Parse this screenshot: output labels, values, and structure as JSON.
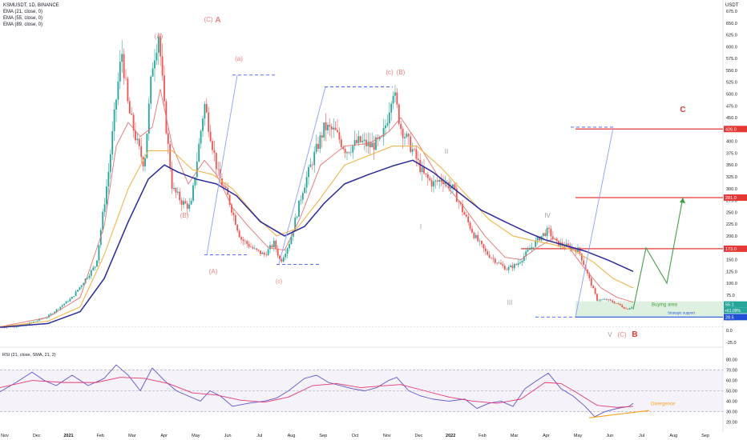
{
  "header": {
    "symbol": "KSMUSDT, 1D, BINANCE",
    "indicators": [
      "EMA (21, close, 0)",
      "EMA (55, close, 0)",
      "EMA (89, close, 0)"
    ],
    "currency": "USDT"
  },
  "colors": {
    "up": "#26a69a",
    "down": "#ef5350",
    "ema21": "#e57373",
    "ema55": "#f0b44c",
    "ema89": "#2a2a9a",
    "wave_label": "#ef7f7f",
    "wave_roman": "#9e9e9e",
    "resistance": "#e53935",
    "projection": "#43a047",
    "fib": "#8c9eff",
    "buying_area": "#c8e6c9",
    "support": "#1e4fd6",
    "rsi": "#5c55c9",
    "rsi_ma": "#e53970",
    "divergence": "#f5a623"
  },
  "chart_data": [
    {
      "type": "candlestick",
      "title": "KSMUSDT, 1D, BINANCE",
      "y_ticks": [
        "675.0",
        "650.0",
        "625.0",
        "600.0",
        "575.0",
        "550.0",
        "525.0",
        "500.0",
        "475.0",
        "450.0",
        "425.0",
        "400.0",
        "375.0",
        "350.0",
        "325.0",
        "300.0",
        "275.0",
        "250.0",
        "225.0",
        "200.0",
        "175.0",
        "150.0",
        "125.0",
        "100.0",
        "75.0",
        "50.0",
        "25.0",
        "0.0",
        "-25.0"
      ],
      "x_ticks": [
        "Nov",
        "Dec",
        "2021",
        "Feb",
        "Mar",
        "Apr",
        "May",
        "Jun",
        "Jul",
        "Aug",
        "Sep",
        "Oct",
        "Nov",
        "Dec",
        "2022",
        "Feb",
        "Mar",
        "Apr",
        "May",
        "Jun",
        "Jul",
        "Aug",
        "Sep"
      ],
      "ylim": [
        -25,
        675
      ],
      "price_path": [
        [
          0,
          7
        ],
        [
          30,
          11
        ],
        [
          60,
          30
        ],
        [
          90,
          70
        ],
        [
          120,
          140
        ],
        [
          135,
          330
        ],
        [
          145,
          490
        ],
        [
          152,
          590
        ],
        [
          160,
          470
        ],
        [
          172,
          390
        ],
        [
          180,
          350
        ],
        [
          190,
          560
        ],
        [
          198,
          630
        ],
        [
          205,
          470
        ],
        [
          215,
          300
        ],
        [
          228,
          270
        ],
        [
          238,
          260
        ],
        [
          255,
          480
        ],
        [
          262,
          420
        ],
        [
          272,
          330
        ],
        [
          285,
          280
        ],
        [
          300,
          195
        ],
        [
          318,
          170
        ],
        [
          330,
          160
        ],
        [
          342,
          185
        ],
        [
          350,
          145
        ],
        [
          362,
          190
        ],
        [
          378,
          300
        ],
        [
          392,
          370
        ],
        [
          405,
          430
        ],
        [
          418,
          420
        ],
        [
          432,
          380
        ],
        [
          448,
          400
        ],
        [
          462,
          390
        ],
        [
          476,
          400
        ],
        [
          484,
          455
        ],
        [
          490,
          515
        ],
        [
          500,
          430
        ],
        [
          515,
          380
        ],
        [
          528,
          330
        ],
        [
          540,
          310
        ],
        [
          552,
          320
        ],
        [
          565,
          300
        ],
        [
          578,
          250
        ],
        [
          592,
          200
        ],
        [
          606,
          165
        ],
        [
          620,
          145
        ],
        [
          632,
          130
        ],
        [
          645,
          140
        ],
        [
          660,
          170
        ],
        [
          672,
          195
        ],
        [
          684,
          212
        ],
        [
          694,
          185
        ],
        [
          708,
          178
        ],
        [
          722,
          170
        ],
        [
          735,
          110
        ],
        [
          745,
          65
        ],
        [
          758,
          65
        ],
        [
          772,
          55
        ],
        [
          782,
          45
        ],
        [
          790,
          52
        ]
      ],
      "ema21": [
        [
          0,
          8
        ],
        [
          60,
          28
        ],
        [
          100,
          70
        ],
        [
          130,
          220
        ],
        [
          145,
          390
        ],
        [
          160,
          440
        ],
        [
          175,
          410
        ],
        [
          190,
          430
        ],
        [
          200,
          510
        ],
        [
          215,
          390
        ],
        [
          235,
          310
        ],
        [
          255,
          360
        ],
        [
          270,
          330
        ],
        [
          290,
          260
        ],
        [
          310,
          220
        ],
        [
          335,
          175
        ],
        [
          355,
          170
        ],
        [
          375,
          240
        ],
        [
          400,
          350
        ],
        [
          430,
          390
        ],
        [
          460,
          395
        ],
        [
          485,
          420
        ],
        [
          500,
          450
        ],
        [
          520,
          400
        ],
        [
          545,
          330
        ],
        [
          575,
          270
        ],
        [
          605,
          200
        ],
        [
          630,
          155
        ],
        [
          650,
          150
        ],
        [
          670,
          175
        ],
        [
          690,
          195
        ],
        [
          710,
          175
        ],
        [
          730,
          130
        ],
        [
          750,
          90
        ],
        [
          770,
          70
        ],
        [
          790,
          60
        ]
      ],
      "ema55": [
        [
          0,
          8
        ],
        [
          60,
          20
        ],
        [
          100,
          50
        ],
        [
          130,
          160
        ],
        [
          160,
          300
        ],
        [
          185,
          380
        ],
        [
          215,
          380
        ],
        [
          240,
          340
        ],
        [
          265,
          330
        ],
        [
          290,
          300
        ],
        [
          320,
          240
        ],
        [
          345,
          200
        ],
        [
          370,
          215
        ],
        [
          400,
          280
        ],
        [
          430,
          350
        ],
        [
          460,
          370
        ],
        [
          490,
          390
        ],
        [
          520,
          390
        ],
        [
          550,
          345
        ],
        [
          580,
          290
        ],
        [
          610,
          235
        ],
        [
          640,
          200
        ],
        [
          665,
          190
        ],
        [
          690,
          182
        ],
        [
          715,
          170
        ],
        [
          740,
          145
        ],
        [
          765,
          110
        ],
        [
          790,
          90
        ]
      ],
      "ema89": [
        [
          0,
          7
        ],
        [
          60,
          15
        ],
        [
          100,
          40
        ],
        [
          130,
          110
        ],
        [
          160,
          230
        ],
        [
          185,
          320
        ],
        [
          205,
          350
        ],
        [
          222,
          335
        ],
        [
          245,
          320
        ],
        [
          270,
          310
        ],
        [
          295,
          285
        ],
        [
          325,
          230
        ],
        [
          355,
          200
        ],
        [
          380,
          220
        ],
        [
          405,
          270
        ],
        [
          430,
          310
        ],
        [
          460,
          330
        ],
        [
          490,
          348
        ],
        [
          515,
          360
        ],
        [
          540,
          335
        ],
        [
          570,
          295
        ],
        [
          600,
          255
        ],
        [
          630,
          230
        ],
        [
          655,
          210
        ],
        [
          680,
          192
        ],
        [
          705,
          180
        ],
        [
          730,
          168
        ],
        [
          760,
          148
        ],
        [
          790,
          125
        ]
      ],
      "horizontal_levels": [
        {
          "price": 426.0,
          "label": "426.0",
          "color": "red"
        },
        {
          "price": 281.0,
          "label": "281.0",
          "color": "red"
        },
        {
          "price": 173.0,
          "label": "173.0",
          "color": "red"
        },
        {
          "price": 55.1,
          "label": "55.1",
          "color": "green"
        },
        {
          "price": 28.5,
          "label": "28.5",
          "color": "blue"
        }
      ],
      "buying_area_label": "Buying area",
      "strategic_support_label": "Strategic support",
      "price_change_label": "+61.09%",
      "wave_labels": [
        "(A)",
        "(C)",
        "A",
        "(B)",
        "(A)",
        "(a)",
        "(c)",
        "(B)",
        "(c)",
        "II",
        "I",
        "IV",
        "III",
        "V",
        "(C)",
        "B",
        "C"
      ]
    },
    {
      "type": "line",
      "title": "RSI (21, close, SMA, 21, 2)",
      "y_ticks": [
        "80.00",
        "70.00",
        "60.00",
        "50.00",
        "40.00",
        "30.00",
        "20.00"
      ],
      "ylim": [
        18,
        82
      ],
      "bands": [
        70,
        50,
        30
      ],
      "rsi": [
        [
          0,
          49
        ],
        [
          20,
          58
        ],
        [
          40,
          68
        ],
        [
          55,
          60
        ],
        [
          70,
          55
        ],
        [
          90,
          65
        ],
        [
          110,
          55
        ],
        [
          130,
          62
        ],
        [
          145,
          75
        ],
        [
          160,
          65
        ],
        [
          175,
          50
        ],
        [
          190,
          72
        ],
        [
          205,
          60
        ],
        [
          220,
          50
        ],
        [
          235,
          45
        ],
        [
          250,
          40
        ],
        [
          262,
          50
        ],
        [
          275,
          45
        ],
        [
          290,
          35
        ],
        [
          310,
          38
        ],
        [
          330,
          40
        ],
        [
          345,
          43
        ],
        [
          360,
          50
        ],
        [
          380,
          62
        ],
        [
          395,
          65
        ],
        [
          410,
          58
        ],
        [
          425,
          55
        ],
        [
          440,
          52
        ],
        [
          455,
          50
        ],
        [
          470,
          53
        ],
        [
          485,
          60
        ],
        [
          495,
          63
        ],
        [
          510,
          50
        ],
        [
          525,
          45
        ],
        [
          540,
          42
        ],
        [
          560,
          40
        ],
        [
          580,
          42
        ],
        [
          595,
          33
        ],
        [
          610,
          38
        ],
        [
          625,
          40
        ],
        [
          640,
          35
        ],
        [
          655,
          52
        ],
        [
          670,
          60
        ],
        [
          684,
          67
        ],
        [
          700,
          52
        ],
        [
          715,
          45
        ],
        [
          730,
          35
        ],
        [
          742,
          25
        ],
        [
          755,
          30
        ],
        [
          770,
          33
        ],
        [
          785,
          35
        ],
        [
          790,
          38
        ]
      ],
      "rsi_ma": [
        [
          0,
          53
        ],
        [
          40,
          60
        ],
        [
          80,
          58
        ],
        [
          120,
          58
        ],
        [
          150,
          63
        ],
        [
          180,
          62
        ],
        [
          210,
          57
        ],
        [
          240,
          48
        ],
        [
          270,
          46
        ],
        [
          300,
          41
        ],
        [
          330,
          39
        ],
        [
          360,
          44
        ],
        [
          390,
          55
        ],
        [
          420,
          57
        ],
        [
          450,
          53
        ],
        [
          480,
          55
        ],
        [
          500,
          56
        ],
        [
          530,
          50
        ],
        [
          560,
          44
        ],
        [
          590,
          40
        ],
        [
          620,
          38
        ],
        [
          650,
          42
        ],
        [
          680,
          58
        ],
        [
          700,
          57
        ],
        [
          720,
          48
        ],
        [
          745,
          36
        ],
        [
          770,
          34
        ],
        [
          790,
          35
        ]
      ],
      "divergence_label": "Divergence"
    }
  ]
}
